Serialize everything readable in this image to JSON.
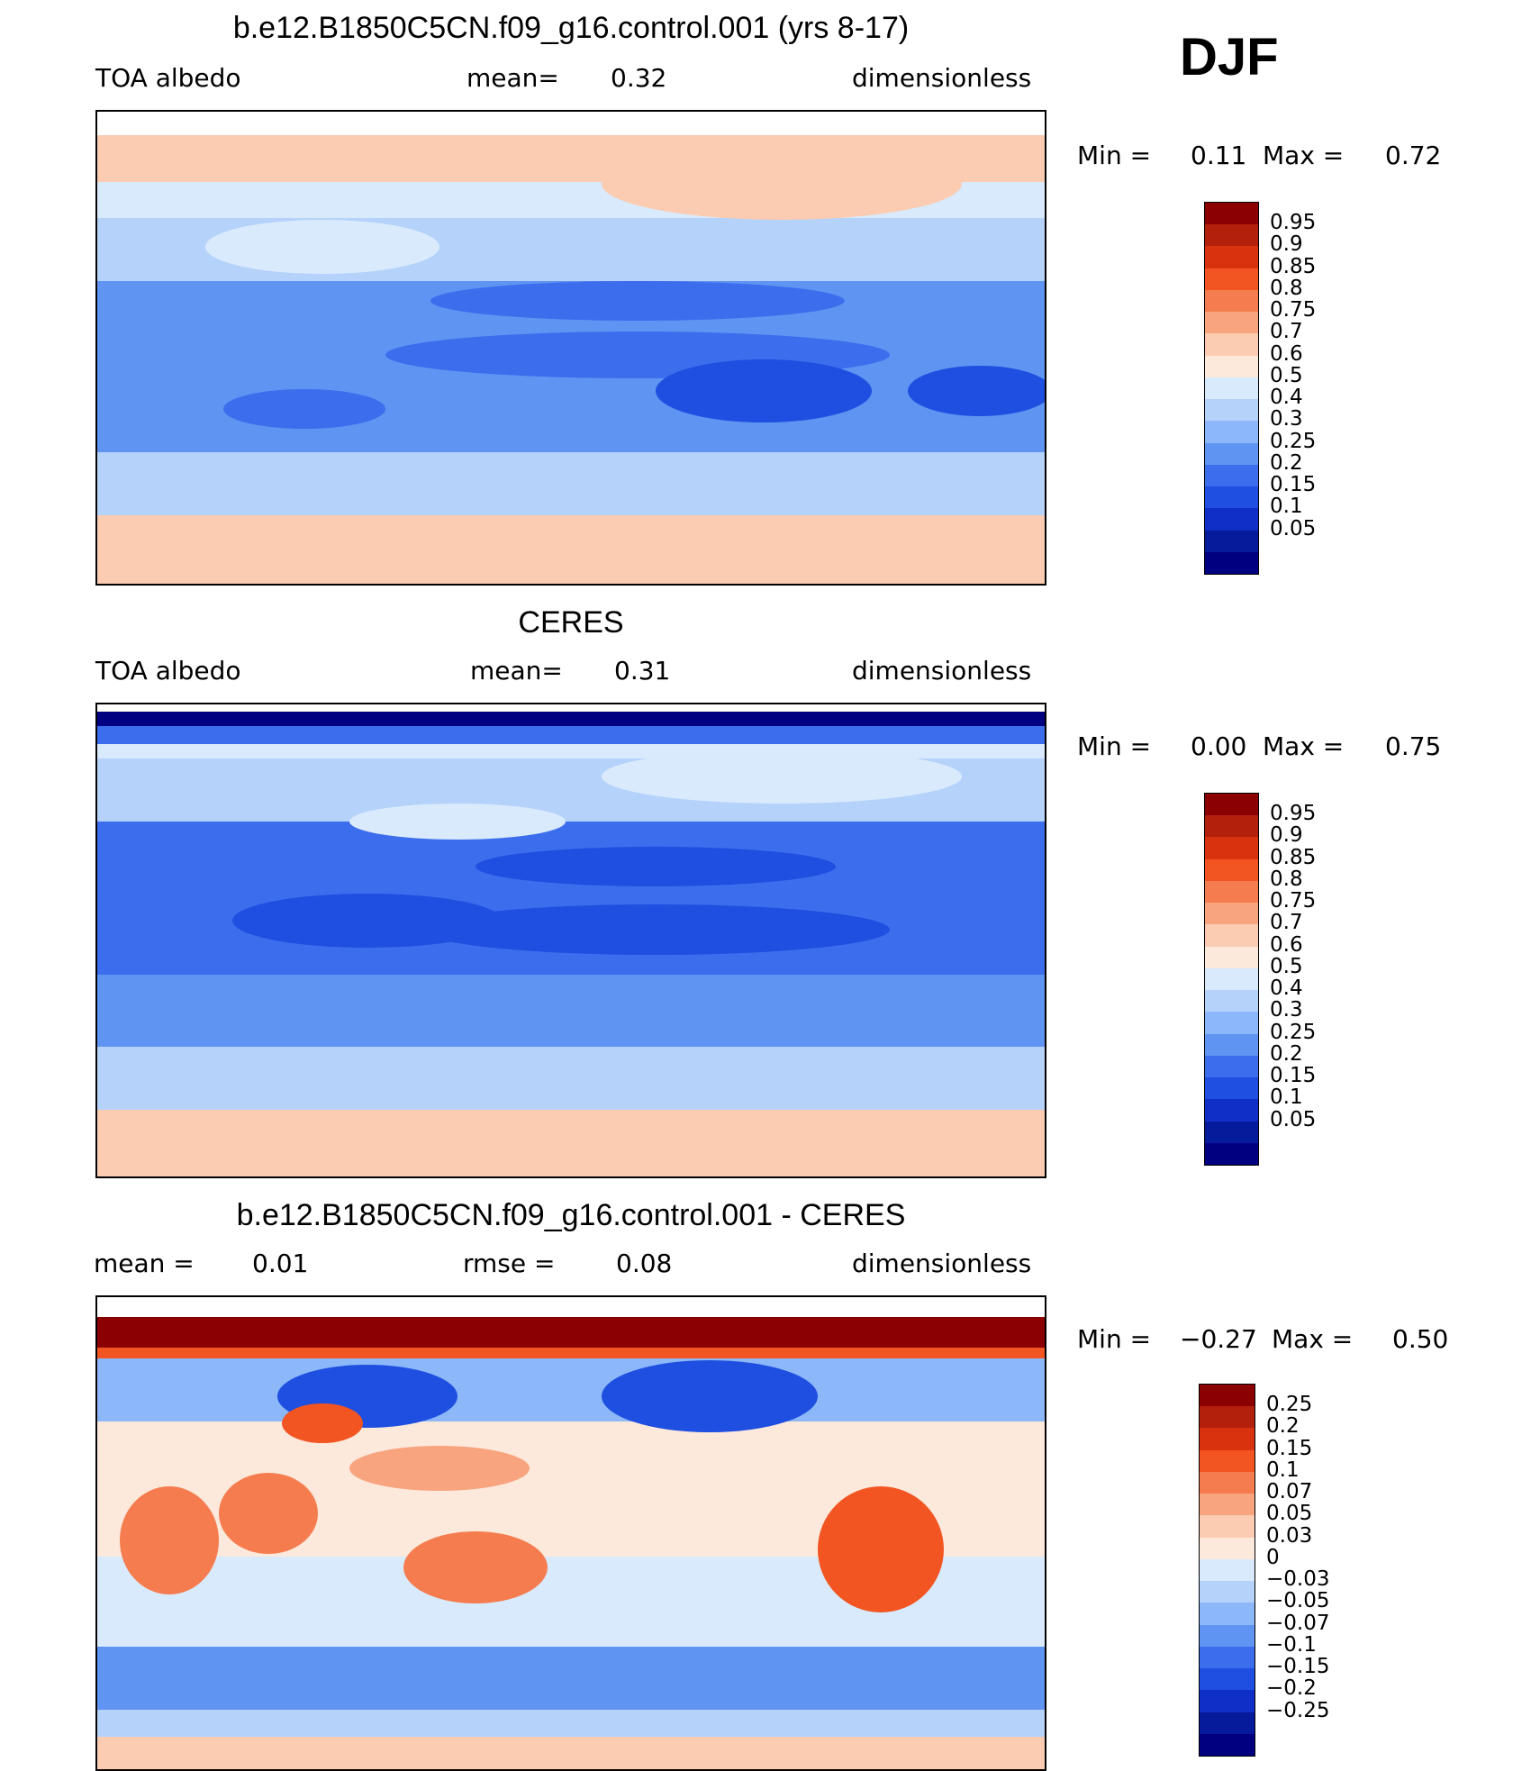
{
  "season": "DJF",
  "panels": [
    {
      "id": "model",
      "title": "b.e12.B1850C5CN.f09_g16.control.001 (yrs 8-17)",
      "left_label": "TOA  albedo",
      "mid_label": "mean=",
      "mid_value": "0.32",
      "right_label": "dimensionless",
      "min_label": "Min  =",
      "min_value": "0.11",
      "max_label": "Max  =",
      "max_value": "0.72",
      "colorbar": {
        "colors": [
          "#8b0000",
          "#b3200c",
          "#d9320f",
          "#f25522",
          "#f57c4e",
          "#f8a47f",
          "#fbcbb2",
          "#fde9dc",
          "#d9eafc",
          "#b5d2fb",
          "#8cb7f8",
          "#5f94f2",
          "#3c6ded",
          "#1e4fe0",
          "#0f2fc7",
          "#061a9c",
          "#000080"
        ],
        "ticks": [
          "0.95",
          "0.9",
          "0.85",
          "0.8",
          "0.75",
          "0.7",
          "0.6",
          "0.5",
          "0.4",
          "0.3",
          "0.25",
          "0.2",
          "0.15",
          "0.1",
          "0.05"
        ]
      }
    },
    {
      "id": "obs",
      "title": "CERES",
      "left_label": "TOA  albedo",
      "mid_label": "mean=",
      "mid_value": "0.31",
      "right_label": "dimensionless",
      "min_label": "Min  =",
      "min_value": "0.00",
      "max_label": "Max  =",
      "max_value": "0.75",
      "colorbar": {
        "colors": [
          "#8b0000",
          "#b3200c",
          "#d9320f",
          "#f25522",
          "#f57c4e",
          "#f8a47f",
          "#fbcbb2",
          "#fde9dc",
          "#d9eafc",
          "#b5d2fb",
          "#8cb7f8",
          "#5f94f2",
          "#3c6ded",
          "#1e4fe0",
          "#0f2fc7",
          "#061a9c",
          "#000080"
        ],
        "ticks": [
          "0.95",
          "0.9",
          "0.85",
          "0.8",
          "0.75",
          "0.7",
          "0.6",
          "0.5",
          "0.4",
          "0.3",
          "0.25",
          "0.2",
          "0.15",
          "0.1",
          "0.05"
        ]
      }
    },
    {
      "id": "diff",
      "title": "b.e12.B1850C5CN.f09_g16.control.001 - CERES",
      "left_label": "mean  =",
      "left_value": "0.01",
      "mid_label": "rmse  =",
      "mid_value": "0.08",
      "right_label": "dimensionless",
      "min_label": "Min  =",
      "min_value": "−0.27",
      "max_label": "Max  =",
      "max_value": "0.50",
      "colorbar": {
        "colors": [
          "#8b0000",
          "#b3200c",
          "#d9320f",
          "#f25522",
          "#f57c4e",
          "#f8a47f",
          "#fbcbb2",
          "#fde9dc",
          "#d9eafc",
          "#b5d2fb",
          "#8cb7f8",
          "#5f94f2",
          "#3c6ded",
          "#1e4fe0",
          "#0f2fc7",
          "#061a9c",
          "#000080"
        ],
        "ticks": [
          "0.25",
          "0.2",
          "0.15",
          "0.1",
          "0.07",
          "0.05",
          "0.03",
          "0",
          "−0.03",
          "−0.05",
          "−0.07",
          "−0.1",
          "−0.15",
          "−0.2",
          "−0.25"
        ]
      }
    }
  ]
}
